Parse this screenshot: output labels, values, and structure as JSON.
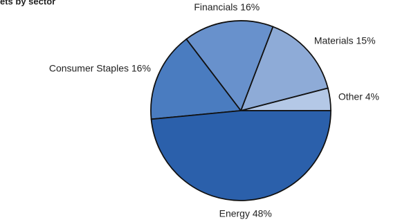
{
  "chart_data": {
    "type": "pie",
    "title": "ets by sector",
    "values": [
      4,
      15,
      16,
      16,
      48
    ],
    "value_labels": [
      "Other 4%",
      "Materials 15%",
      "Financials 16%",
      "Consumer Staples 16%",
      "Energy 48%"
    ],
    "colors": [
      "#b4c8e6",
      "#8eabd7",
      "#6891cc",
      "#4a7cc0",
      "#2b60ab"
    ]
  }
}
